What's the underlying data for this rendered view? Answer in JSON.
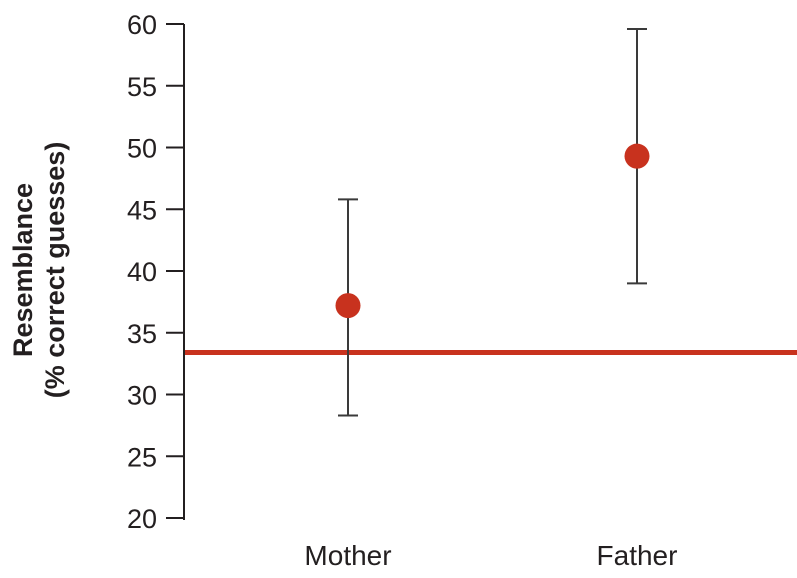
{
  "chart_data": {
    "type": "scatter",
    "title": "",
    "xlabel": "",
    "ylabel_lines": [
      "Resemblance",
      "(% correct guesses)"
    ],
    "ylim": [
      20,
      60
    ],
    "yticks": [
      20,
      25,
      30,
      35,
      40,
      45,
      50,
      55,
      60
    ],
    "grid": false,
    "categories": [
      "Mother",
      "Father"
    ],
    "points": [
      {
        "category": "Mother",
        "value": 37.2,
        "error_low": 28.3,
        "error_high": 45.8
      },
      {
        "category": "Father",
        "value": 49.3,
        "error_low": 39.0,
        "error_high": 59.6
      }
    ],
    "reference_line": {
      "value": 33.4
    },
    "colors": {
      "point": "#c8321e",
      "reference_line": "#c8321e",
      "axis": "#231f20",
      "error_bar": "#3a3a3a"
    }
  }
}
